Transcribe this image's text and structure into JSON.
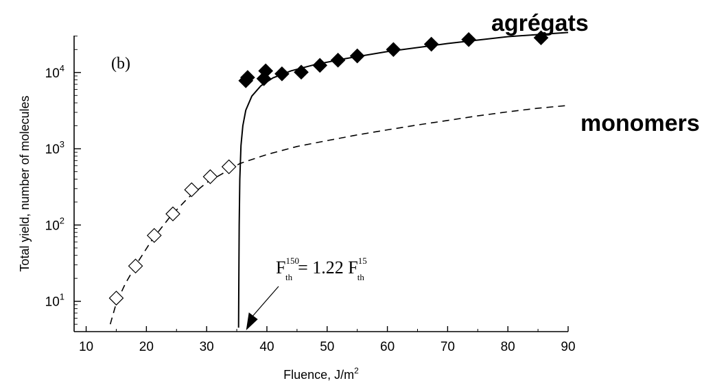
{
  "chart_data": {
    "type": "scatter",
    "panel_label": "(b)",
    "xlabel": "Fluence, J/m",
    "xlabel_sup": "2",
    "ylabel": "Total yield, number of molecules",
    "xlim": [
      8,
      90
    ],
    "ylim": [
      4,
      50000
    ],
    "y_scale": "log",
    "grid": false,
    "x_ticks": [
      10,
      20,
      30,
      40,
      50,
      60,
      70,
      80,
      90
    ],
    "y_ticks": [
      {
        "value": 10,
        "base": "10",
        "exp": "1"
      },
      {
        "value": 100,
        "base": "10",
        "exp": "2"
      },
      {
        "value": 1000,
        "base": "10",
        "exp": "3"
      },
      {
        "value": 10000,
        "base": "10",
        "exp": "4"
      }
    ],
    "series": [
      {
        "name": "agrégats",
        "marker": "filled-diamond",
        "color": "#000000",
        "x": [
          36.5,
          36.8,
          39.5,
          39.8,
          42.5,
          45.7,
          48.8,
          51.8,
          55.0,
          61.0,
          67.3,
          73.5,
          85.5
        ],
        "y": [
          7800,
          8600,
          8300,
          10500,
          9600,
          10100,
          12400,
          14500,
          16500,
          20000,
          23500,
          27000,
          28500
        ]
      },
      {
        "name": "monomers",
        "marker": "open-diamond",
        "color": "#000000",
        "x": [
          15.0,
          18.2,
          21.3,
          24.4,
          27.5,
          30.6,
          33.7
        ],
        "y": [
          11,
          29,
          73,
          140,
          290,
          430,
          580
        ]
      }
    ],
    "curves": [
      {
        "name": "agrégats-fit",
        "style": "solid",
        "points": [
          [
            35.3,
            4.5
          ],
          [
            35.35,
            20
          ],
          [
            35.4,
            100
          ],
          [
            35.5,
            400
          ],
          [
            35.7,
            1100
          ],
          [
            36.0,
            2000
          ],
          [
            36.5,
            3200
          ],
          [
            37.5,
            4900
          ],
          [
            39.0,
            6700
          ],
          [
            41.0,
            8500
          ],
          [
            44.0,
            10500
          ],
          [
            48.0,
            12700
          ],
          [
            53.0,
            15200
          ],
          [
            60.0,
            18800
          ],
          [
            70.0,
            24000
          ],
          [
            80.0,
            29500
          ],
          [
            90.0,
            33500
          ]
        ]
      },
      {
        "name": "monomers-fit",
        "style": "dashed",
        "points": [
          [
            14.0,
            5
          ],
          [
            15.0,
            9.5
          ],
          [
            16.5,
            17
          ],
          [
            18.5,
            32
          ],
          [
            21.0,
            65
          ],
          [
            24.0,
            130
          ],
          [
            27.0,
            230
          ],
          [
            30.0,
            360
          ],
          [
            33.0,
            490
          ],
          [
            35.5,
            640
          ],
          [
            40.0,
            840
          ],
          [
            45.0,
            1070
          ],
          [
            50.0,
            1280
          ],
          [
            55.0,
            1520
          ],
          [
            60.0,
            1770
          ],
          [
            65.0,
            2050
          ],
          [
            70.0,
            2350
          ],
          [
            75.0,
            2700
          ],
          [
            80.0,
            3050
          ],
          [
            85.0,
            3400
          ],
          [
            90.0,
            3700
          ]
        ]
      }
    ],
    "annotations": {
      "agregats_label": "agrégats",
      "monomers_label": "monomers",
      "threshold": {
        "F_left": "F",
        "sub_left": "th",
        "sup_left": "150",
        "equals": "= 1.22 F",
        "sub_right": "th",
        "sup_right": "15",
        "arrow_target": {
          "x": 35.3,
          "y": 4
        }
      }
    }
  }
}
